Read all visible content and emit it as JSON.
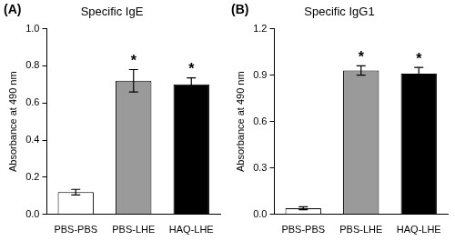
{
  "chart_data": [
    {
      "type": "bar",
      "panel_label": "(A)",
      "title": "Specific IgE",
      "y_label": "Absorbance at 490 nm",
      "categories": [
        "PBS-PBS",
        "PBS-LHE",
        "HAQ-LHE"
      ],
      "values": [
        0.12,
        0.72,
        0.7
      ],
      "errors": [
        0.015,
        0.06,
        0.035
      ],
      "colors": [
        "#ffffff",
        "#9a9a9a",
        "#000000"
      ],
      "annotations": [
        {
          "category": "PBS-LHE",
          "text": "*"
        },
        {
          "category": "HAQ-LHE",
          "text": "*"
        }
      ],
      "ylim": [
        0,
        1.0
      ],
      "yticks": [
        {
          "value": 0,
          "label": "0.0"
        },
        0.2,
        0.4,
        0.6,
        0.8,
        {
          "value": 1.0,
          "label": "1.0"
        }
      ],
      "grid": false
    },
    {
      "type": "bar",
      "panel_label": "(B)",
      "title": "Specific IgG1",
      "y_label": "Absorbance at 490 nm",
      "categories": [
        "PBS-PBS",
        "PBS-LHE",
        "HAQ-LHE"
      ],
      "values": [
        0.04,
        0.93,
        0.91
      ],
      "errors": [
        0.01,
        0.03,
        0.04
      ],
      "colors": [
        "#ffffff",
        "#9a9a9a",
        "#000000"
      ],
      "annotations": [
        {
          "category": "PBS-LHE",
          "text": "*"
        },
        {
          "category": "HAQ-LHE",
          "text": "*"
        }
      ],
      "ylim": [
        0,
        1.2
      ],
      "yticks": [
        {
          "value": 0,
          "label": "0.0"
        },
        0.3,
        0.6,
        0.9,
        1.2
      ],
      "grid": false
    }
  ]
}
